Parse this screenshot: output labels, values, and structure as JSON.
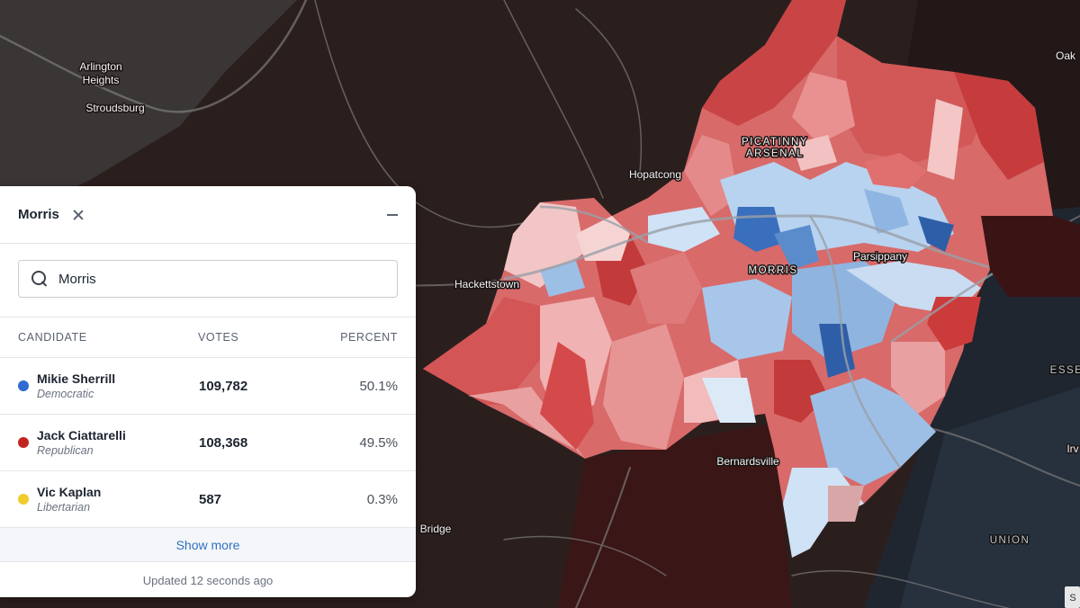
{
  "map": {
    "labels": {
      "arlington": "Arlington",
      "heights": "Heights",
      "stroudsburg": "Stroudsburg",
      "hopatcong": "Hopatcong",
      "picatinny": "PICATINNY",
      "arsenal": "ARSENAL",
      "hackettstown": "Hackettstown",
      "morris": "MORRIS",
      "parsippany": "Parsippany",
      "bernardsville": "Bernardsville",
      "bridge": "Bridge",
      "union": "UNION",
      "oak": "Oak",
      "esse": "ESSE",
      "irv": "Irv",
      "corner": "S"
    },
    "colors": {
      "background": "#2a1e1d",
      "dem_strong": "#2f5ea8",
      "dem_light": "#cfe2f6",
      "rep_strong": "#c0302c",
      "rep_light": "#f2c9c9"
    }
  },
  "panel": {
    "title": "Morris",
    "search": {
      "value": "Morris",
      "placeholder": "Search"
    },
    "columns": {
      "candidate": "CANDIDATE",
      "votes": "VOTES",
      "percent": "PERCENT"
    },
    "candidates": [
      {
        "name": "Mikie Sherrill",
        "party": "Democratic",
        "votes": "109,782",
        "percent": "50.1%",
        "color": "#2f6bd1"
      },
      {
        "name": "Jack Ciattarelli",
        "party": "Republican",
        "votes": "108,368",
        "percent": "49.5%",
        "color": "#c0261f"
      },
      {
        "name": "Vic Kaplan",
        "party": "Libertarian",
        "votes": "587",
        "percent": "0.3%",
        "color": "#f0cc2e"
      }
    ],
    "show_more": "Show more",
    "updated": "Updated 12 seconds ago"
  }
}
